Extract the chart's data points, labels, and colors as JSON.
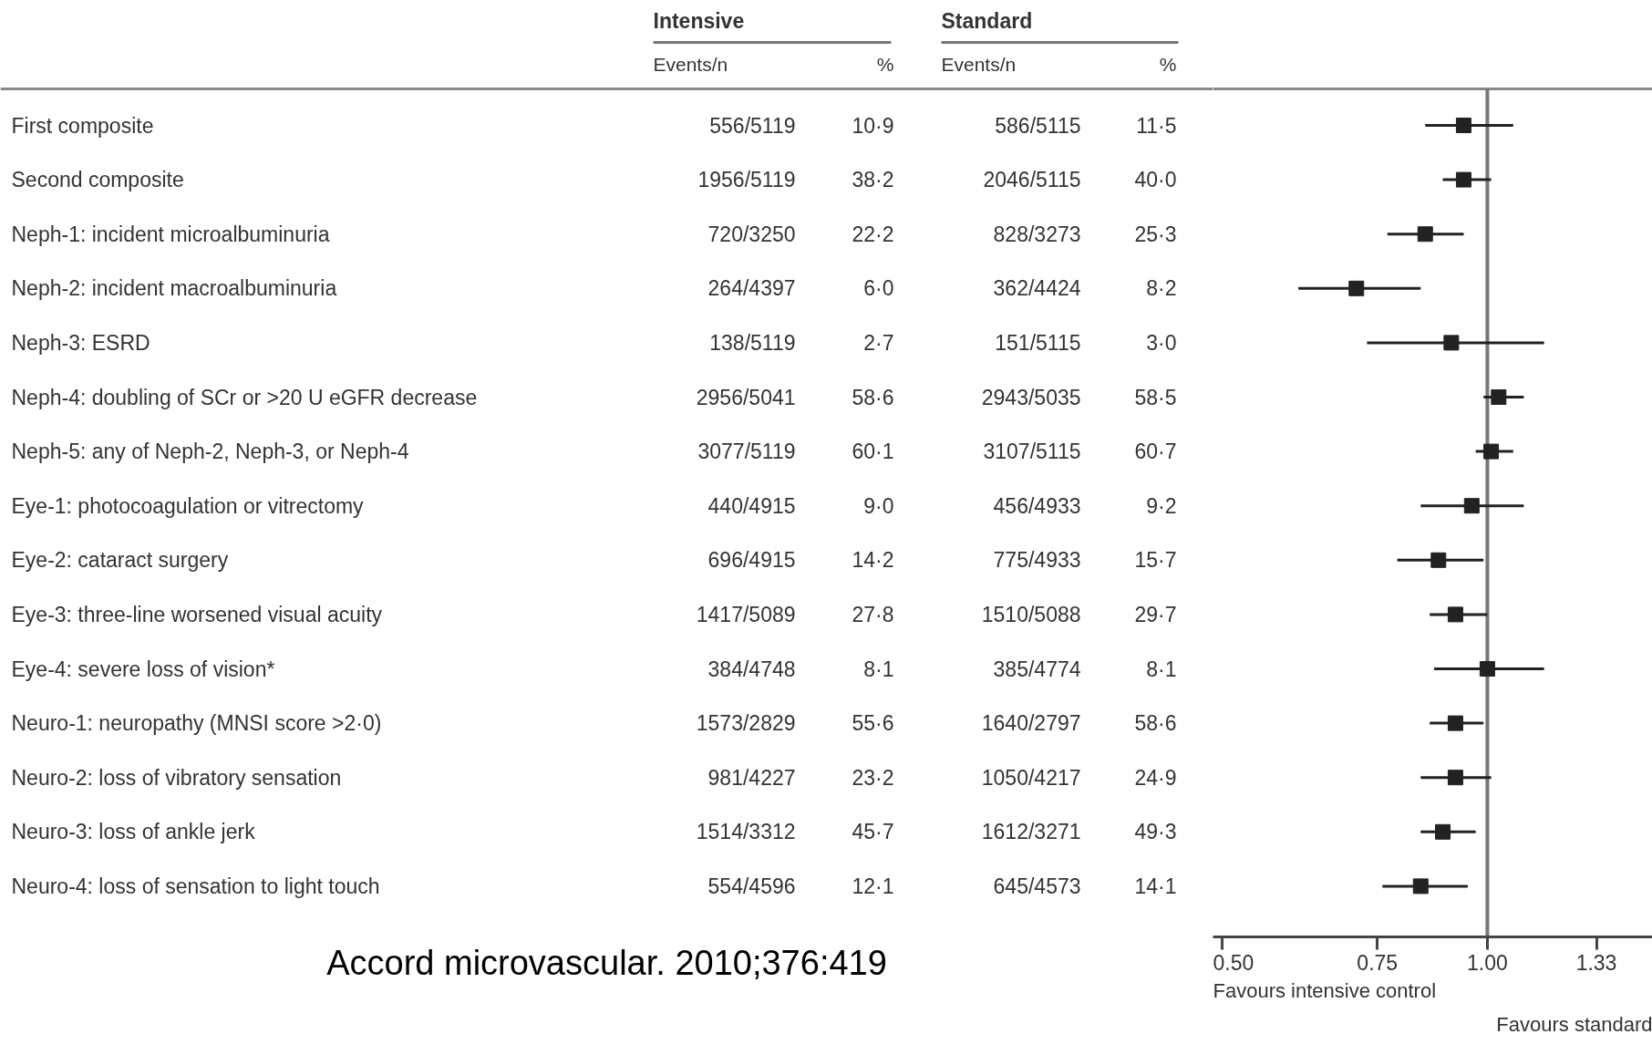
{
  "chart_data": [
    {
      "type": "other",
      "categories": [
        "First composite",
        "Second composite",
        "Neph-1: incident microalbuminuria",
        "Neph-2: incident macroalbuminuria",
        "Neph-3: ESRD",
        "Neph-4: doubling of SCr or >20 U eGFR decrease",
        "Neph-5: any of Neph-2, Neph-3, or Neph-4",
        "Eye-1: photocoagulation or vitrectomy",
        "Eye-2: cataract surgery",
        "Eye-3: three-line worsened visual acuity",
        "Eye-4: severe loss of vision*",
        "Neuro-1: neuropathy (MNSI score >2·0)",
        "Neuro-2: loss of vibratory sensation",
        "Neuro-3: loss of ankle jerk",
        "Neuro-4: loss of sensation to light touch"
      ],
      "annotations": [
        "Intensive",
        "Standard",
        "Events/n",
        "%",
        "Events/n",
        "%",
        "556/5119",
        "10·9",
        "586/5115",
        "11·5",
        "1956/5119",
        "38·2",
        "2046/5115",
        "40·0",
        "720/3250",
        "22·2",
        "828/3273",
        "25·3",
        "264/4397",
        "6·0",
        "362/4424",
        "8·2",
        "138/5119",
        "2·7",
        "151/5115",
        "3·0",
        "2956/5041",
        "58·6",
        "2943/5035",
        "58·5",
        "3077/5119",
        "60·1",
        "3107/5115",
        "60·7",
        "440/4915",
        "9·0",
        "456/4933",
        "9·2",
        "696/4915",
        "14·2",
        "775/4933",
        "15·7",
        "1417/5089",
        "27·8",
        "1510/5088",
        "29·7",
        "384/4748",
        "8·1",
        "385/4774",
        "8·1",
        "1573/2829",
        "55·6",
        "1640/2797",
        "58·6",
        "981/4227",
        "23·2",
        "1050/4217",
        "24·9",
        "1514/3312",
        "45·7",
        "1612/3271",
        "49·3",
        "554/4596",
        "12·1",
        "645/4573",
        "14·1",
        "Accord microvascular. 2010;376:419"
      ]
    },
    {
      "type": "scatter",
      "orientation": "horizontal",
      "log": "x",
      "marker": "square",
      "tick_labels": "x",
      "grid": false,
      "categories": [
        null,
        null,
        null,
        null,
        null,
        null,
        null,
        null,
        null,
        null,
        null,
        null,
        null,
        null,
        null
      ],
      "values": [
        0.94,
        0.94,
        0.85,
        0.71,
        0.91,
        1.03,
        1.01,
        0.96,
        0.88,
        0.92,
        1.0,
        0.92,
        0.92,
        0.89,
        0.84
      ],
      "errors": [
        [
          0.85,
          1.07
        ],
        [
          0.89,
          1.01
        ],
        [
          0.77,
          0.94
        ],
        [
          0.61,
          0.84
        ],
        [
          0.73,
          1.16
        ],
        [
          0.99,
          1.1
        ],
        [
          0.97,
          1.07
        ],
        [
          0.84,
          1.1
        ],
        [
          0.79,
          0.99
        ],
        [
          0.86,
          1.0
        ],
        [
          0.87,
          1.16
        ],
        [
          0.86,
          0.99
        ],
        [
          0.84,
          1.01
        ],
        [
          0.84,
          0.97
        ],
        [
          0.76,
          0.95
        ]
      ],
      "color": "#222222",
      "xlim": [
        0.488,
        1.54
      ],
      "xticks": [
        {
          "value": 0.5,
          "label": "0.50"
        },
        {
          "value": 0.75,
          "label": "0.75"
        },
        {
          "value": 1.0,
          "label": "1.00"
        },
        {
          "value": 1.33,
          "label": "1.33"
        }
      ],
      "ref_lines": [
        {
          "axis": "x",
          "value": 1.0,
          "color": "#777777"
        }
      ],
      "annotations": [
        "Favours intensive control",
        "Favours standard"
      ]
    }
  ]
}
